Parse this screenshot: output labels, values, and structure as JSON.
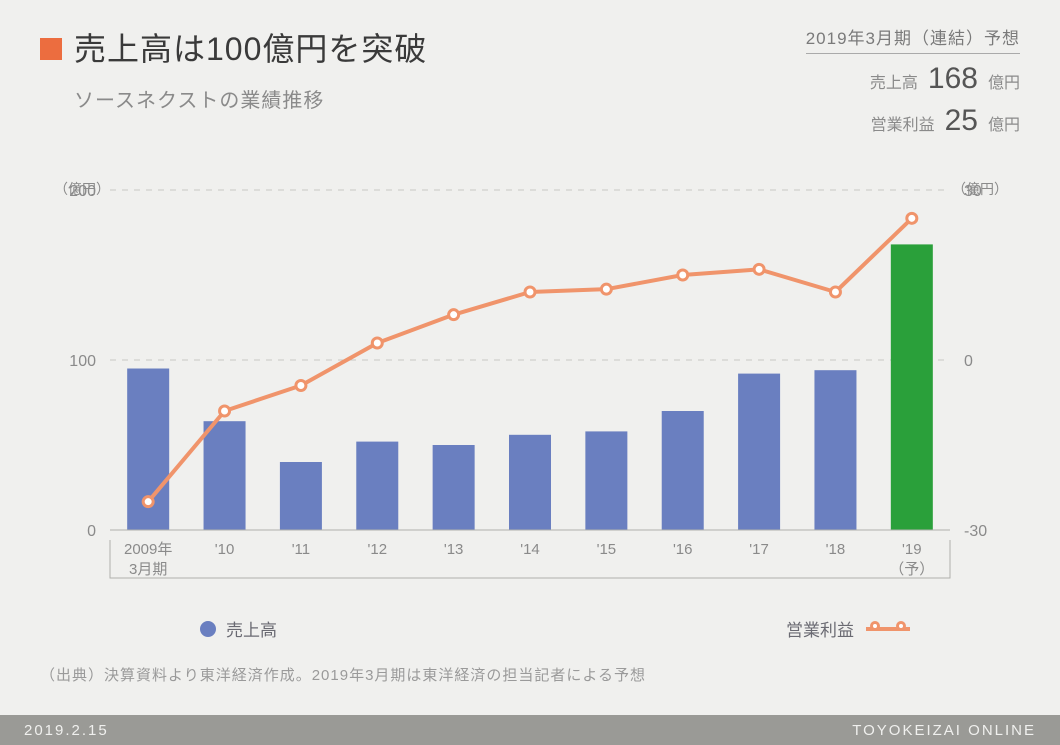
{
  "title": "売上高は100億円を突破",
  "subtitle": "ソースネクストの業績推移",
  "title_marker_color": "#ec6d3f",
  "forecast": {
    "period": "2019年3月期（連結）予想",
    "rows": [
      {
        "label": "売上高",
        "value": "168",
        "unit": "億円"
      },
      {
        "label": "営業利益",
        "value": "25",
        "unit": "億円"
      }
    ]
  },
  "chart": {
    "type": "bar+line",
    "categories": [
      "2009年\n3月期",
      "'10",
      "'11",
      "'12",
      "'13",
      "'14",
      "'15",
      "'16",
      "'17",
      "'18",
      "'19\n（予）"
    ],
    "bars": {
      "label": "売上高",
      "color": "#6a7fc0",
      "highlight_color": "#2aa03a",
      "highlight_index": 10,
      "values": [
        95,
        64,
        40,
        52,
        50,
        56,
        58,
        70,
        92,
        94,
        168
      ]
    },
    "line": {
      "label": "営業利益",
      "color": "#f0946b",
      "marker_fill": "#ffffff",
      "marker_stroke": "#f0946b",
      "marker_stroke_width": 3,
      "marker_radius": 5,
      "line_width": 4,
      "values": [
        -25,
        -9,
        -4.5,
        3,
        8,
        12,
        12.5,
        15,
        16,
        12,
        25
      ]
    },
    "left_axis": {
      "label": "（億円）",
      "min": 0,
      "max": 200,
      "ticks": [
        0,
        100,
        200
      ]
    },
    "right_axis": {
      "label": "（億円）",
      "min": -30,
      "max": 30,
      "ticks": [
        -30,
        0,
        30
      ]
    },
    "grid_color": "#c8c8c4",
    "axis_text_color": "#8a8a8a",
    "axis_font_size": 16,
    "background": "#f0f0ee",
    "bar_width_ratio": 0.55,
    "bracket_color": "#b0b0ac"
  },
  "legend": {
    "bar_label": "売上高",
    "line_label": "営業利益"
  },
  "source": "（出典）決算資料より東洋経済作成。2019年3月期は東洋経済の担当記者による予想",
  "footer": {
    "date": "2019.2.15",
    "brand": "TOYOKEIZAI ONLINE"
  }
}
